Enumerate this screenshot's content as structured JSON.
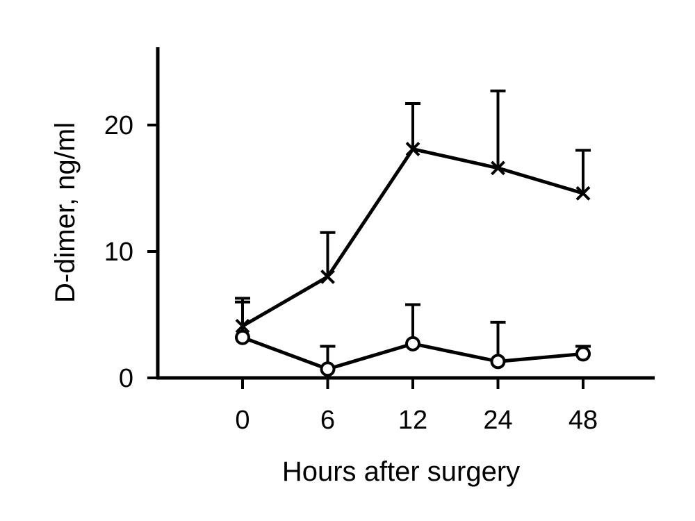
{
  "chart_data": {
    "type": "line",
    "xlabel": "Hours after surgery",
    "ylabel": "D-dimer, ng/ml",
    "categories": [
      "0",
      "6",
      "12",
      "24",
      "48"
    ],
    "ylim": [
      0,
      26
    ],
    "yticks": [
      0,
      10,
      20
    ],
    "grid": false,
    "series": [
      {
        "marker": "x",
        "values": [
          4.1,
          8.0,
          18.1,
          16.6,
          14.6
        ],
        "error_upper": [
          6.3,
          11.5,
          21.7,
          22.7,
          18.0
        ]
      },
      {
        "marker": "open-circle",
        "values": [
          3.2,
          0.7,
          2.7,
          1.3,
          1.9
        ],
        "error_upper": [
          6.0,
          2.5,
          5.8,
          4.4,
          2.5
        ]
      }
    ]
  }
}
